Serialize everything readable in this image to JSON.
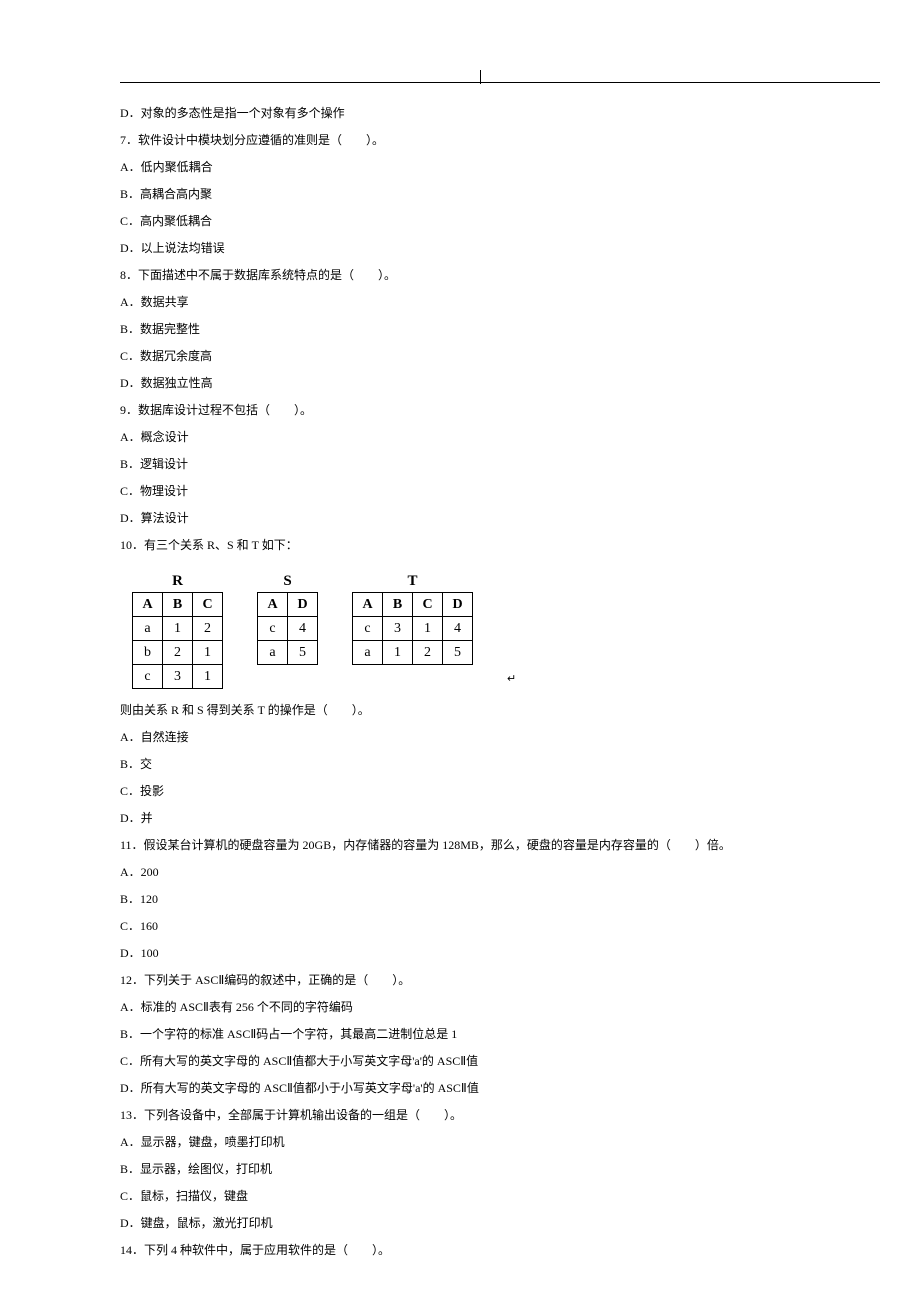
{
  "lines_top": [
    "D．对象的多态性是指一个对象有多个操作",
    "7．软件设计中模块划分应遵循的准则是（　　）。",
    "A．低内聚低耦合",
    "B．高耦合高内聚",
    "C．高内聚低耦合",
    "D．以上说法均错误",
    "8．下面描述中不属于数据库系统特点的是（　　）。",
    "A．数据共享",
    "B．数据完整性",
    "C．数据冗余度高",
    "D．数据独立性高",
    "9．数据库设计过程不包括（　　）。",
    "A．概念设计",
    "B．逻辑设计",
    "C．物理设计",
    "D．算法设计",
    "10．有三个关系 R、S 和 T 如下："
  ],
  "tables": {
    "R": {
      "title": "R",
      "header": [
        "A",
        "B",
        "C"
      ],
      "rows": [
        [
          "a",
          "1",
          "2"
        ],
        [
          "b",
          "2",
          "1"
        ],
        [
          "c",
          "3",
          "1"
        ]
      ]
    },
    "S": {
      "title": "S",
      "header": [
        "A",
        "D"
      ],
      "rows": [
        [
          "c",
          "4"
        ],
        [
          "a",
          "5"
        ]
      ]
    },
    "T": {
      "title": "T",
      "header": [
        "A",
        "B",
        "C",
        "D"
      ],
      "rows": [
        [
          "c",
          "3",
          "1",
          "4"
        ],
        [
          "a",
          "1",
          "2",
          "5"
        ]
      ]
    }
  },
  "lines_bottom": [
    "则由关系 R 和 S 得到关系 T 的操作是（　　）。",
    "A．自然连接",
    "B．交",
    "C．投影",
    "D．并",
    "11．假设某台计算机的硬盘容量为 20GB，内存储器的容量为 128MB，那么，硬盘的容量是内存容量的（　　）倍。",
    "A．200",
    "B．120",
    "C．160",
    "D．100",
    "12．下列关于 ASCⅡ编码的叙述中，正确的是（　　）。",
    "A．标准的 ASCⅡ表有 256 个不同的字符编码",
    "B．一个字符的标准 ASCⅡ码占一个字符，其最高二进制位总是 1",
    "C．所有大写的英文字母的 ASCⅡ值都大于小写英文字母'a'的 ASCⅡ值",
    "D．所有大写的英文字母的 ASCⅡ值都小于小写英文字母'a'的 ASCⅡ值",
    "13．下列各设备中，全部属于计算机输出设备的一组是（　　）。",
    "A．显示器，键盘，喷墨打印机",
    "B．显示器，绘图仪，打印机",
    "C．鼠标，扫描仪，键盘",
    "D．键盘，鼠标，激光打印机",
    "14．下列 4 种软件中，属于应用软件的是（　　）。"
  ]
}
